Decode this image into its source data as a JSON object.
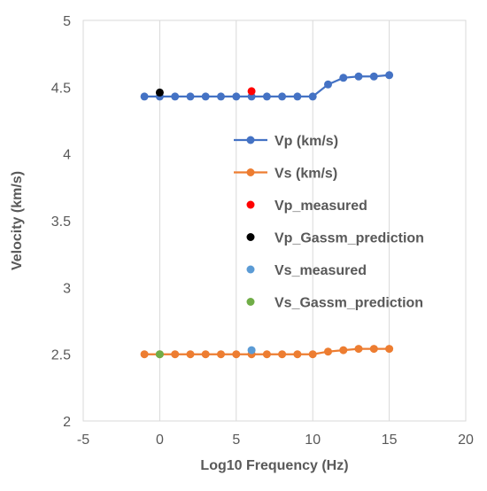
{
  "chart_data": {
    "type": "scatter",
    "title": "",
    "xlabel": "Log10 Frequency (Hz)",
    "ylabel": "Velocity (km/s)",
    "xlim": [
      -5,
      20
    ],
    "ylim": [
      2,
      5
    ],
    "xticks": [
      -5,
      0,
      5,
      10,
      15,
      20
    ],
    "yticks": [
      2,
      2.5,
      3,
      3.5,
      4,
      4.5,
      5
    ],
    "xtick_labels": [
      "-5",
      "0",
      "5",
      "10",
      "15",
      "20"
    ],
    "ytick_labels": [
      "2",
      "2.5",
      "3",
      "3.5",
      "4",
      "4.5",
      "5"
    ],
    "grid": "vertical",
    "legend_position": "center-right",
    "series": [
      {
        "name": "Vp (km/s)",
        "color": "#4472C4",
        "style": "line-markers",
        "x": [
          -1,
          0,
          1,
          2,
          3,
          4,
          5,
          6,
          7,
          8,
          9,
          10,
          11,
          12,
          13,
          14,
          15
        ],
        "y": [
          4.43,
          4.43,
          4.43,
          4.43,
          4.43,
          4.43,
          4.43,
          4.43,
          4.43,
          4.43,
          4.43,
          4.43,
          4.52,
          4.57,
          4.58,
          4.58,
          4.59
        ]
      },
      {
        "name": "Vs (km/s)",
        "color": "#ED7D31",
        "style": "line-markers",
        "x": [
          -1,
          0,
          1,
          2,
          3,
          4,
          5,
          6,
          7,
          8,
          9,
          10,
          11,
          12,
          13,
          14,
          15
        ],
        "y": [
          2.5,
          2.5,
          2.5,
          2.5,
          2.5,
          2.5,
          2.5,
          2.5,
          2.5,
          2.5,
          2.5,
          2.5,
          2.52,
          2.53,
          2.54,
          2.54,
          2.54
        ]
      },
      {
        "name": "Vp_measured",
        "color": "#FF0000",
        "style": "markers",
        "x": [
          6
        ],
        "y": [
          4.47
        ]
      },
      {
        "name": "Vp_Gassm_prediction",
        "color": "#000000",
        "style": "markers",
        "x": [
          0
        ],
        "y": [
          4.46
        ]
      },
      {
        "name": "Vs_measured",
        "color": "#5B9BD5",
        "style": "markers",
        "x": [
          6
        ],
        "y": [
          2.53
        ]
      },
      {
        "name": "Vs_Gassm_prediction",
        "color": "#70AD47",
        "style": "markers",
        "x": [
          0
        ],
        "y": [
          2.5
        ]
      }
    ]
  }
}
